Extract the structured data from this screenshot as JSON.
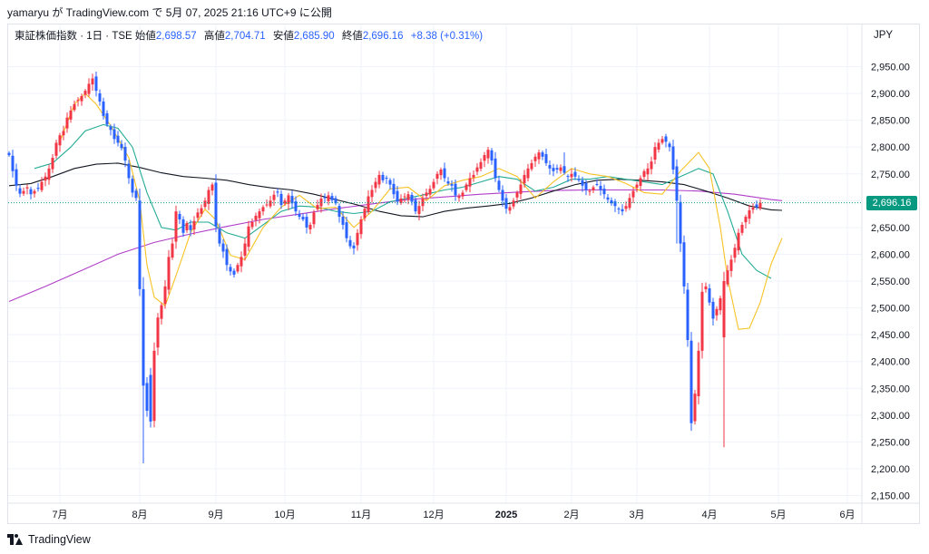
{
  "header": {
    "credit": "yamaryu が TradingView.com で 5月 07, 2025 21:16 UTC+9 に公開"
  },
  "legend": {
    "symbol": "東証株価指数 · 1日 · TSE",
    "open_label": "始値",
    "open_value": "2,698.57",
    "high_label": "高値",
    "high_value": "2,704.71",
    "low_label": "安値",
    "low_value": "2,685.90",
    "close_label": "終値",
    "close_value": "2,696.16",
    "change": "+8.38 (+0.31%)"
  },
  "currency": "JPY",
  "last_price_label": "2,696.16",
  "brand": "TradingView",
  "colors": {
    "up": "#f23645",
    "down": "#2962ff",
    "ma_yellow": "#f7c325",
    "ma_green": "#22ab94",
    "ma_black": "#131722",
    "ma_purple": "#b03ec9",
    "last_price": "#089981"
  },
  "chart_data": {
    "type": "candlestick",
    "y_axis": {
      "min": 2150,
      "max": 2950,
      "step": 50,
      "position": "right"
    },
    "y_ticks": [
      "2,950.00",
      "2,900.00",
      "2,850.00",
      "2,800.00",
      "2,750.00",
      "2,700.00",
      "2,650.00",
      "2,600.00",
      "2,550.00",
      "2,500.00",
      "2,450.00",
      "2,400.00",
      "2,350.00",
      "2,300.00",
      "2,250.00",
      "2,200.00",
      "2,150.00"
    ],
    "x_ticks": [
      {
        "label": "7月",
        "index": 14,
        "bold": false
      },
      {
        "label": "8月",
        "index": 36,
        "bold": false
      },
      {
        "label": "9月",
        "index": 57,
        "bold": false
      },
      {
        "label": "10月",
        "index": 76,
        "bold": false
      },
      {
        "label": "11月",
        "index": 97,
        "bold": false
      },
      {
        "label": "12月",
        "index": 117,
        "bold": false
      },
      {
        "label": "2025",
        "index": 137,
        "bold": true
      },
      {
        "label": "2月",
        "index": 155,
        "bold": false
      },
      {
        "label": "3月",
        "index": 173,
        "bold": false
      },
      {
        "label": "4月",
        "index": 193,
        "bold": false
      },
      {
        "label": "5月",
        "index": 212,
        "bold": false
      },
      {
        "label": "6月",
        "index": 231,
        "bold": false
      }
    ],
    "total_slots": 235,
    "last_price": 2696.16,
    "closes": [
      2785,
      2755,
      2728,
      2713,
      2718,
      2725,
      2712,
      2718,
      2722,
      2735,
      2745,
      2760,
      2780,
      2808,
      2822,
      2830,
      2855,
      2868,
      2880,
      2888,
      2895,
      2905,
      2918,
      2928,
      2905,
      2885,
      2858,
      2842,
      2832,
      2815,
      2808,
      2798,
      2775,
      2742,
      2715,
      2705,
      2535,
      2355,
      2308,
      2288,
      2420,
      2482,
      2505,
      2540,
      2595,
      2620,
      2680,
      2665,
      2640,
      2658,
      2645,
      2662,
      2678,
      2686,
      2700,
      2720,
      2730,
      2652,
      2620,
      2605,
      2580,
      2568,
      2562,
      2580,
      2595,
      2620,
      2652,
      2660,
      2672,
      2680,
      2688,
      2693,
      2700,
      2711,
      2715,
      2692,
      2700,
      2710,
      2695,
      2680,
      2670,
      2665,
      2650,
      2655,
      2678,
      2692,
      2704,
      2705,
      2710,
      2701,
      2695,
      2670,
      2655,
      2630,
      2615,
      2611,
      2640,
      2665,
      2685,
      2708,
      2720,
      2735,
      2748,
      2738,
      2742,
      2730,
      2712,
      2698,
      2704,
      2708,
      2712,
      2698,
      2680,
      2690,
      2704,
      2715,
      2722,
      2735,
      2750,
      2758,
      2742,
      2732,
      2728,
      2710,
      2708,
      2715,
      2730,
      2742,
      2748,
      2762,
      2772,
      2785,
      2795,
      2775,
      2742,
      2720,
      2700,
      2685,
      2688,
      2700,
      2715,
      2730,
      2748,
      2760,
      2770,
      2782,
      2790,
      2782,
      2770,
      2760,
      2755,
      2758,
      2762,
      2752,
      2745,
      2750,
      2745,
      2738,
      2728,
      2720,
      2718,
      2725,
      2730,
      2720,
      2712,
      2702,
      2695,
      2690,
      2684,
      2680,
      2690,
      2705,
      2718,
      2730,
      2742,
      2755,
      2760,
      2773,
      2800,
      2808,
      2815,
      2810,
      2800,
      2758,
      2700,
      2620,
      2540,
      2440,
      2285,
      2340,
      2420,
      2530,
      2540,
      2510,
      2480,
      2498,
      2518,
      2550,
      2570,
      2590,
      2612,
      2640,
      2655,
      2670,
      2682,
      2687,
      2688,
      2696.16
    ],
    "ma_yellow": [
      [
        14,
        2810
      ],
      [
        18,
        2880
      ],
      [
        21,
        2900
      ],
      [
        24,
        2880
      ],
      [
        28,
        2840
      ],
      [
        33,
        2780
      ],
      [
        36,
        2700
      ],
      [
        38,
        2580
      ],
      [
        40,
        2520
      ],
      [
        43,
        2504
      ],
      [
        46,
        2560
      ],
      [
        50,
        2640
      ],
      [
        54,
        2684
      ],
      [
        57,
        2664
      ],
      [
        61,
        2598
      ],
      [
        65,
        2590
      ],
      [
        70,
        2650
      ],
      [
        75,
        2688
      ],
      [
        80,
        2710
      ],
      [
        85,
        2685
      ],
      [
        90,
        2688
      ],
      [
        95,
        2650
      ],
      [
        100,
        2680
      ],
      [
        105,
        2722
      ],
      [
        110,
        2725
      ],
      [
        115,
        2700
      ],
      [
        120,
        2728
      ],
      [
        125,
        2738
      ],
      [
        130,
        2745
      ],
      [
        135,
        2760
      ],
      [
        140,
        2745
      ],
      [
        145,
        2705
      ],
      [
        150,
        2735
      ],
      [
        155,
        2760
      ],
      [
        160,
        2750
      ],
      [
        165,
        2745
      ],
      [
        170,
        2732
      ],
      [
        175,
        2715
      ],
      [
        180,
        2712
      ],
      [
        185,
        2755
      ],
      [
        190,
        2790
      ],
      [
        193,
        2760
      ],
      [
        196,
        2650
      ],
      [
        198,
        2555
      ],
      [
        201,
        2460
      ],
      [
        204,
        2462
      ],
      [
        207,
        2510
      ],
      [
        210,
        2582
      ],
      [
        213,
        2630
      ]
    ],
    "ma_green": [
      [
        7,
        2760
      ],
      [
        12,
        2770
      ],
      [
        17,
        2800
      ],
      [
        21,
        2830
      ],
      [
        26,
        2842
      ],
      [
        30,
        2835
      ],
      [
        34,
        2800
      ],
      [
        38,
        2715
      ],
      [
        42,
        2650
      ],
      [
        46,
        2645
      ],
      [
        50,
        2660
      ],
      [
        55,
        2660
      ],
      [
        60,
        2640
      ],
      [
        65,
        2630
      ],
      [
        70,
        2655
      ],
      [
        75,
        2680
      ],
      [
        80,
        2690
      ],
      [
        85,
        2688
      ],
      [
        90,
        2680
      ],
      [
        95,
        2676
      ],
      [
        100,
        2680
      ],
      [
        105,
        2698
      ],
      [
        110,
        2705
      ],
      [
        115,
        2712
      ],
      [
        120,
        2720
      ],
      [
        125,
        2725
      ],
      [
        130,
        2735
      ],
      [
        135,
        2745
      ],
      [
        140,
        2740
      ],
      [
        145,
        2718
      ],
      [
        150,
        2725
      ],
      [
        155,
        2740
      ],
      [
        160,
        2740
      ],
      [
        165,
        2745
      ],
      [
        170,
        2740
      ],
      [
        175,
        2735
      ],
      [
        180,
        2730
      ],
      [
        185,
        2745
      ],
      [
        190,
        2760
      ],
      [
        194,
        2750
      ],
      [
        198,
        2680
      ],
      [
        202,
        2600
      ],
      [
        206,
        2570
      ],
      [
        210,
        2555
      ]
    ],
    "ma_black": [
      [
        0,
        2728
      ],
      [
        6,
        2732
      ],
      [
        12,
        2745
      ],
      [
        18,
        2760
      ],
      [
        24,
        2768
      ],
      [
        30,
        2770
      ],
      [
        36,
        2762
      ],
      [
        42,
        2752
      ],
      [
        48,
        2745
      ],
      [
        54,
        2742
      ],
      [
        60,
        2738
      ],
      [
        66,
        2730
      ],
      [
        72,
        2724
      ],
      [
        78,
        2720
      ],
      [
        84,
        2712
      ],
      [
        90,
        2702
      ],
      [
        96,
        2692
      ],
      [
        102,
        2680
      ],
      [
        108,
        2672
      ],
      [
        114,
        2670
      ],
      [
        120,
        2680
      ],
      [
        126,
        2686
      ],
      [
        132,
        2690
      ],
      [
        138,
        2695
      ],
      [
        144,
        2705
      ],
      [
        150,
        2718
      ],
      [
        156,
        2730
      ],
      [
        162,
        2738
      ],
      [
        168,
        2740
      ],
      [
        174,
        2738
      ],
      [
        180,
        2735
      ],
      [
        186,
        2730
      ],
      [
        192,
        2718
      ],
      [
        198,
        2705
      ],
      [
        204,
        2690
      ],
      [
        210,
        2683
      ],
      [
        213,
        2682
      ]
    ],
    "ma_purple": [
      [
        0,
        2512
      ],
      [
        10,
        2540
      ],
      [
        20,
        2570
      ],
      [
        30,
        2600
      ],
      [
        40,
        2622
      ],
      [
        50,
        2638
      ],
      [
        60,
        2652
      ],
      [
        70,
        2665
      ],
      [
        80,
        2675
      ],
      [
        90,
        2685
      ],
      [
        100,
        2694
      ],
      [
        110,
        2702
      ],
      [
        120,
        2707
      ],
      [
        130,
        2712
      ],
      [
        140,
        2716
      ],
      [
        150,
        2719
      ],
      [
        160,
        2720
      ],
      [
        170,
        2720
      ],
      [
        180,
        2720
      ],
      [
        190,
        2718
      ],
      [
        200,
        2712
      ],
      [
        210,
        2702
      ],
      [
        213,
        2700
      ]
    ]
  }
}
